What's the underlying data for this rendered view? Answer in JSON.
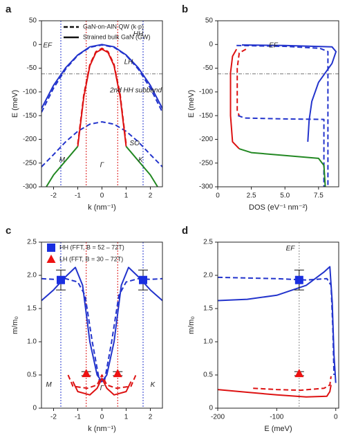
{
  "chart_data": [
    {
      "type": "line",
      "panel_label": "a",
      "xlabel": "k (nm⁻¹)",
      "ylabel": "E (meV)",
      "xlim": [
        -2.5,
        2.5
      ],
      "ylim": [
        -300,
        50
      ],
      "xticks": [
        -2,
        -1,
        0,
        1,
        2
      ],
      "yticks": [
        -300,
        -250,
        -200,
        -150,
        -100,
        -50,
        0,
        50
      ],
      "legend": [
        {
          "name": "GaN-on-AlN QW (k·p)",
          "style": "dashed"
        },
        {
          "name": "Strained bulk GaN (GW)",
          "style": "solid"
        }
      ],
      "vlines": [
        {
          "value": -1.7,
          "color": "#2233cc"
        },
        {
          "value": -0.65,
          "color": "#dd1111"
        },
        {
          "value": 0.65,
          "color": "#dd1111"
        },
        {
          "value": 1.7,
          "color": "#2233cc"
        }
      ],
      "hline": -62,
      "annotations": [
        {
          "text": "EF",
          "color": "#666666"
        },
        {
          "text": "HH",
          "color": "#2233cc"
        },
        {
          "text": "LH",
          "color": "#dd1111"
        },
        {
          "text": "2nd HH subband",
          "color": "#2233cc"
        },
        {
          "text": "SO",
          "color": "#228822"
        },
        {
          "text": "M",
          "color": "#000000"
        },
        {
          "text": "Γ",
          "color": "#000000"
        },
        {
          "text": "K",
          "color": "#000000"
        }
      ],
      "series": [
        {
          "color": "#2233cc",
          "style": "solid",
          "x": [
            -2.5,
            -2,
            -1.5,
            -1,
            -0.5,
            0,
            0.5,
            1,
            1.5,
            2,
            2.5
          ],
          "values": [
            -135,
            -86,
            -49,
            -22,
            -5,
            0,
            -5,
            -22,
            -49,
            -86,
            -135
          ]
        },
        {
          "color": "#2233cc",
          "style": "dashed",
          "x": [
            -2.5,
            -2,
            -1.5,
            -1,
            -0.5,
            0,
            0.5,
            1,
            1.5,
            2,
            2.5
          ],
          "values": [
            -143,
            -92,
            -52,
            -23,
            -6,
            -1,
            -6,
            -23,
            -52,
            -92,
            -143
          ]
        },
        {
          "color": "#2233cc",
          "style": "dashed",
          "x": [
            -2.5,
            -2,
            -1.5,
            -1,
            -0.5,
            0,
            0.5,
            1,
            1.5,
            2,
            2.5
          ],
          "values": [
            -258,
            -232,
            -205,
            -183,
            -168,
            -163,
            -168,
            -183,
            -205,
            -232,
            -258
          ]
        },
        {
          "color": "#dd1111",
          "style": "solid",
          "x": [
            -1,
            -0.75,
            -0.5,
            -0.25,
            0,
            0.25,
            0.5,
            0.75,
            1
          ],
          "values": [
            -215,
            -110,
            -45,
            -17,
            -10,
            -17,
            -45,
            -110,
            -215
          ]
        },
        {
          "color": "#dd1111",
          "style": "dashed",
          "x": [
            -1,
            -0.75,
            -0.5,
            -0.25,
            0,
            0.25,
            0.5,
            0.75,
            1
          ],
          "values": [
            -210,
            -105,
            -42,
            -15,
            -8,
            -15,
            -42,
            -105,
            -210
          ]
        },
        {
          "color": "#228822",
          "style": "solid",
          "x": [
            -2.3,
            -2,
            -1.5,
            -1,
            0,
            1,
            1.5,
            2,
            2.3
          ],
          "values": [
            -300,
            -275,
            -245,
            -215,
            null,
            -215,
            -245,
            -275,
            -300
          ]
        }
      ]
    },
    {
      "type": "line",
      "panel_label": "b",
      "xlabel": "DOS (eV⁻¹ nm⁻²)",
      "ylabel": "E (meV)",
      "xlim": [
        0,
        9
      ],
      "ylim": [
        -300,
        50
      ],
      "xticks": [
        0,
        2.5,
        {
          "value": 5,
          "label": "5.0"
        },
        7.5
      ],
      "yticks": [
        -300,
        -250,
        -200,
        -150,
        -100,
        -50,
        0,
        50
      ],
      "hline": -62,
      "annotations": [
        {
          "text": "EF",
          "color": "#666666"
        }
      ],
      "series": [
        {
          "color": "#2233cc",
          "style": "solid",
          "x": [
            1.8,
            5,
            8.5,
            8.8,
            8.5,
            7.5,
            7,
            6.8,
            6.7
          ],
          "values": [
            -1,
            -2,
            -5,
            -15,
            -40,
            -80,
            -120,
            -160,
            -205
          ]
        },
        {
          "color": "#2233cc",
          "style": "dashed",
          "x": [
            1.4,
            5,
            7.6,
            8.2,
            8.2,
            8.2
          ],
          "values": [
            -2,
            -4,
            -8,
            -15,
            -150,
            -300
          ]
        },
        {
          "color": "#2233cc",
          "style": "dashed",
          "x": [
            1.5,
            2,
            5,
            7.9,
            7.9
          ],
          "values": [
            -150,
            -155,
            -157,
            -158,
            -300
          ]
        },
        {
          "color": "#dd1111",
          "style": "solid",
          "x": [
            1.4,
            1.1,
            0.95,
            0.95,
            1.1,
            1.6
          ],
          "values": [
            -10,
            -25,
            -60,
            -150,
            -205,
            -220
          ]
        },
        {
          "color": "#dd1111",
          "style": "dashed",
          "x": [
            2.1,
            1.6,
            1.45,
            1.45,
            1.6
          ],
          "values": [
            -10,
            -18,
            -50,
            -140,
            -150
          ]
        },
        {
          "color": "#228822",
          "style": "solid",
          "x": [
            1.6,
            2.5,
            5,
            7.5,
            7.9,
            8.0
          ],
          "values": [
            -220,
            -228,
            -234,
            -240,
            -255,
            -300
          ]
        }
      ]
    },
    {
      "type": "line",
      "panel_label": "c",
      "xlabel": "k (nm⁻¹)",
      "ylabel": "m/m₀",
      "xlim": [
        -2.5,
        2.5
      ],
      "ylim": [
        0,
        2.5
      ],
      "xticks": [
        -2,
        -1,
        0,
        1,
        2
      ],
      "yticks": [
        0,
        0.5,
        {
          "value": 1,
          "label": "1.0"
        },
        1.5,
        {
          "value": 2,
          "label": "2.0"
        },
        2.5
      ],
      "vlines": [
        {
          "value": -1.7,
          "color": "#2233cc"
        },
        {
          "value": -0.65,
          "color": "#dd1111"
        },
        {
          "value": 0.65,
          "color": "#dd1111"
        },
        {
          "value": 1.7,
          "color": "#2233cc"
        }
      ],
      "annotations": [
        {
          "text": "M",
          "color": "#000000"
        },
        {
          "text": "Γ",
          "color": "#000000"
        },
        {
          "text": "K",
          "color": "#000000"
        }
      ],
      "series": [
        {
          "color": "#2233cc",
          "style": "solid",
          "x": [
            -2.5,
            -2,
            -1.5,
            -1.1,
            -0.8,
            -0.5,
            -0.2,
            0,
            0.2,
            0.5,
            0.8,
            1.1,
            1.5,
            2,
            2.5
          ],
          "values": [
            1.62,
            1.78,
            1.98,
            2.12,
            1.85,
            1.0,
            0.5,
            0.4,
            0.5,
            1.0,
            1.85,
            2.12,
            1.98,
            1.78,
            1.62
          ]
        },
        {
          "color": "#2233cc",
          "style": "dashed",
          "x": [
            -2.5,
            -2,
            -1.5,
            -1,
            -0.7,
            -0.4,
            -0.1,
            0.1,
            0.4,
            0.7,
            1,
            1.5,
            2,
            2.5
          ],
          "values": [
            1.95,
            1.94,
            1.95,
            1.9,
            1.7,
            1.0,
            0.4,
            0.4,
            1.0,
            1.7,
            1.9,
            1.95,
            1.94,
            1.95
          ]
        },
        {
          "color": "#dd1111",
          "style": "solid",
          "x": [
            -1.2,
            -1,
            -0.5,
            -0.2,
            0,
            0.2,
            0.5,
            1,
            1.2
          ],
          "values": [
            0.4,
            0.25,
            0.2,
            0.3,
            0.45,
            0.3,
            0.2,
            0.25,
            0.4
          ]
        },
        {
          "color": "#dd1111",
          "style": "dashed",
          "x": [
            -1.4,
            -1.2,
            -0.6,
            -0.2,
            0,
            0.2,
            0.6,
            1.2,
            1.4
          ],
          "values": [
            0.5,
            0.33,
            0.3,
            0.35,
            0.5,
            0.35,
            0.3,
            0.33,
            0.5
          ]
        },
        {
          "name": "HH (FFT, B = 52 – 72T)",
          "color": "#1a2fe0",
          "marker": "square",
          "x": [
            -1.7,
            1.7
          ],
          "values": [
            1.93,
            1.93
          ],
          "errors": [
            0.15,
            0.15
          ]
        },
        {
          "name": "LH (FFT, B = 30 – 72T)",
          "color": "#ee1111",
          "marker": "triangle",
          "x": [
            -0.65,
            0.65
          ],
          "values": [
            0.52,
            0.52
          ],
          "errors": [
            0.03,
            0.03
          ]
        }
      ]
    },
    {
      "type": "line",
      "panel_label": "d",
      "xlabel": "E (meV)",
      "ylabel": "m/m₀",
      "xlim": [
        -200,
        5
      ],
      "ylim": [
        0,
        2.5
      ],
      "xticks": [
        -200,
        -100,
        0
      ],
      "yticks": [
        0,
        0.5,
        {
          "value": 1,
          "label": "1.0"
        },
        1.5,
        {
          "value": 2,
          "label": "2.0"
        },
        2.5
      ],
      "vlines": [
        {
          "value": -62,
          "color": "#888888"
        }
      ],
      "annotations": [
        {
          "text": "EF",
          "color": "#666666"
        }
      ],
      "series": [
        {
          "color": "#2233cc",
          "style": "solid",
          "x": [
            -200,
            -150,
            -100,
            -50,
            -20,
            -10,
            -6,
            -3,
            0
          ],
          "values": [
            1.62,
            1.64,
            1.7,
            1.85,
            2.05,
            2.13,
            1.6,
            0.8,
            0.38
          ]
        },
        {
          "color": "#2233cc",
          "style": "dashed",
          "x": [
            -200,
            -100,
            -50,
            -15,
            -8,
            -5,
            -3
          ],
          "values": [
            1.97,
            1.95,
            1.93,
            1.95,
            1.85,
            1.2,
            0.5
          ]
        },
        {
          "color": "#dd1111",
          "style": "solid",
          "x": [
            -200,
            -150,
            -100,
            -50,
            -15,
            -10,
            -8
          ],
          "values": [
            0.28,
            0.24,
            0.2,
            0.17,
            0.18,
            0.25,
            0.35
          ]
        },
        {
          "color": "#dd1111",
          "style": "dashed",
          "x": [
            -140,
            -100,
            -60,
            -20,
            -10,
            -8
          ],
          "values": [
            0.3,
            0.28,
            0.27,
            0.3,
            0.35,
            0.48
          ]
        },
        {
          "color": "#1a2fe0",
          "marker": "square",
          "x": [
            -62
          ],
          "values": [
            1.93
          ],
          "errors": [
            0.15
          ]
        },
        {
          "color": "#ee1111",
          "marker": "triangle",
          "x": [
            -62
          ],
          "values": [
            0.52
          ],
          "errors": [
            0.03
          ]
        }
      ]
    }
  ]
}
